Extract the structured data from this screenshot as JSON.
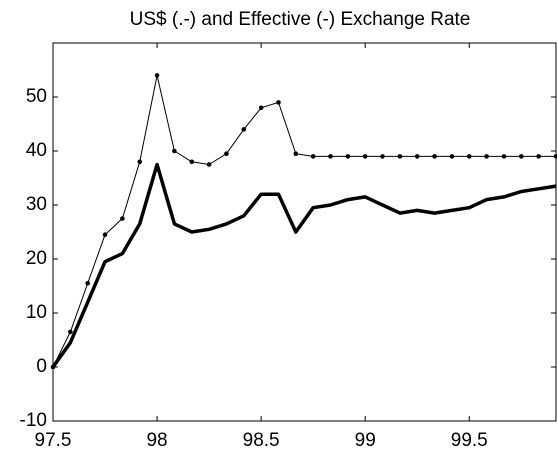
{
  "chart_data": {
    "type": "line",
    "title": "US$ (.-) and Effective (-) Exchange Rate",
    "x": [
      97.5,
      97.5833,
      97.6667,
      97.75,
      97.8333,
      97.9167,
      98,
      98.0833,
      98.1667,
      98.25,
      98.3333,
      98.4167,
      98.5,
      98.5833,
      98.6667,
      98.75,
      98.8333,
      98.9167,
      99,
      99.0833,
      99.1667,
      99.25,
      99.3333,
      99.4167,
      99.5,
      99.5833,
      99.6667,
      99.75,
      99.8333,
      99.9167
    ],
    "series": [
      {
        "color": "#000000",
        "line_width": 1,
        "marker": true,
        "values": [
          0,
          6.5,
          15.5,
          24.5,
          27.5,
          38,
          54,
          40,
          38,
          37.5,
          39.5,
          44,
          48,
          49,
          39.5,
          39,
          39,
          39,
          39,
          39,
          39,
          39,
          39,
          39,
          39,
          39,
          39,
          39,
          39,
          39
        ]
      },
      {
        "color": "#000000",
        "line_width": 3.5,
        "marker": false,
        "values": [
          0,
          4.5,
          12,
          19.5,
          21,
          26.5,
          37.5,
          26.5,
          25,
          25.5,
          26.5,
          28,
          32,
          32,
          25,
          29.5,
          30,
          31,
          31.5,
          30,
          28.5,
          29,
          28.5,
          29,
          29.5,
          31,
          31.5,
          32.5,
          33,
          33.5
        ]
      }
    ],
    "xlim": [
      97.5,
      99.9167
    ],
    "xticks": [
      97.5,
      98,
      98.5,
      99,
      99.5
    ],
    "ylim": [
      -10,
      60
    ],
    "yticks": [
      -10,
      0,
      10,
      20,
      30,
      40,
      50
    ],
    "grid": false
  }
}
